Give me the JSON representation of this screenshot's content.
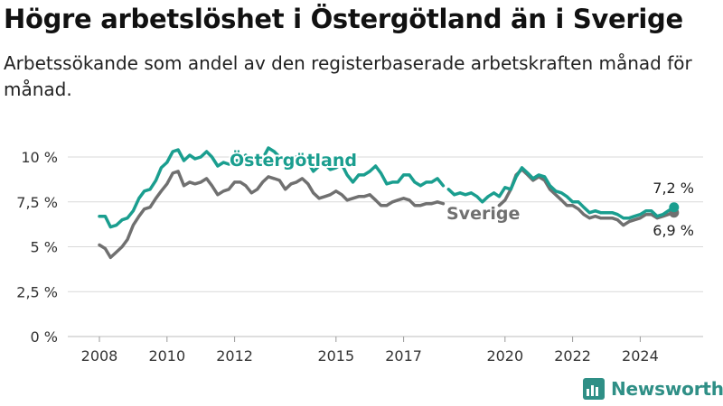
{
  "title": "Högre arbetslöshet i Östergötland än i Sverige",
  "subtitle": "Arbetssökande som andel av den registerbaserade arbetskraften månad för månad.",
  "brand": {
    "name": "Newsworthy",
    "icon": "newsworthy-logo-icon"
  },
  "colors": {
    "ostergotland": "#1a9e8f",
    "sverige": "#707070",
    "grid": "#d9d9d9"
  },
  "chart_data": {
    "type": "line",
    "title": "Högre arbetslöshet i Östergötland än i Sverige",
    "subtitle": "Arbetssökande som andel av den registerbaserade arbetskraften månad för månad.",
    "xlabel": "",
    "ylabel": "",
    "ylim": [
      0,
      10
    ],
    "xlim": [
      2007.6,
      2025.5
    ],
    "grid": true,
    "legend": "inline labels",
    "y_ticks": [
      {
        "value": 0,
        "label": "0 %"
      },
      {
        "value": 2.5,
        "label": "2,5 %"
      },
      {
        "value": 5,
        "label": "5 %"
      },
      {
        "value": 7.5,
        "label": "7,5 %"
      },
      {
        "value": 10,
        "label": "10 %"
      }
    ],
    "x_ticks": [
      {
        "value": 2008,
        "label": "2008"
      },
      {
        "value": 2010,
        "label": "2010"
      },
      {
        "value": 2012,
        "label": "2012"
      },
      {
        "value": 2015,
        "label": "2015"
      },
      {
        "value": 2017,
        "label": "2017"
      },
      {
        "value": 2020,
        "label": "2020"
      },
      {
        "value": 2022,
        "label": "2022"
      },
      {
        "value": 2024,
        "label": "2024"
      }
    ],
    "series": [
      {
        "name": "Östergötland",
        "color": "#1a9e8f",
        "end_label": "7,2 %",
        "segments": [
          [
            [
              2008.0,
              6.7
            ],
            [
              2008.17,
              6.7
            ],
            [
              2008.33,
              6.1
            ],
            [
              2008.5,
              6.2
            ],
            [
              2008.67,
              6.5
            ],
            [
              2008.83,
              6.6
            ],
            [
              2009.0,
              7.0
            ],
            [
              2009.17,
              7.7
            ],
            [
              2009.33,
              8.1
            ],
            [
              2009.5,
              8.2
            ],
            [
              2009.67,
              8.7
            ],
            [
              2009.83,
              9.4
            ],
            [
              2010.0,
              9.7
            ],
            [
              2010.17,
              10.3
            ],
            [
              2010.33,
              10.4
            ],
            [
              2010.5,
              9.8
            ],
            [
              2010.67,
              10.1
            ],
            [
              2010.83,
              9.9
            ],
            [
              2011.0,
              10.0
            ],
            [
              2011.17,
              10.3
            ],
            [
              2011.33,
              10.0
            ],
            [
              2011.5,
              9.5
            ],
            [
              2011.67,
              9.7
            ],
            [
              2011.83,
              9.6
            ],
            [
              2012.0,
              9.8
            ],
            [
              2012.17,
              9.8
            ],
            [
              2012.33,
              10.1
            ],
            [
              2012.5,
              9.8
            ],
            [
              2012.67,
              9.7
            ],
            [
              2012.83,
              9.9
            ],
            [
              2013.0,
              10.5
            ],
            [
              2013.17,
              10.3
            ],
            [
              2013.33,
              10.0
            ],
            [
              2013.5,
              9.8
            ],
            [
              2013.67,
              9.9
            ],
            [
              2013.83,
              10.0
            ],
            [
              2014.0,
              9.8
            ],
            [
              2014.17,
              9.7
            ],
            [
              2014.33,
              9.2
            ],
            [
              2014.5,
              9.5
            ],
            [
              2014.67,
              9.6
            ],
            [
              2014.83,
              9.3
            ],
            [
              2015.0,
              9.4
            ],
            [
              2015.17,
              9.6
            ],
            [
              2015.33,
              9.0
            ],
            [
              2015.5,
              8.6
            ],
            [
              2015.67,
              9.0
            ],
            [
              2015.83,
              9.0
            ],
            [
              2016.0,
              9.2
            ],
            [
              2016.17,
              9.5
            ],
            [
              2016.33,
              9.1
            ],
            [
              2016.5,
              8.5
            ],
            [
              2016.67,
              8.6
            ],
            [
              2016.83,
              8.6
            ],
            [
              2017.0,
              9.0
            ],
            [
              2017.17,
              9.0
            ],
            [
              2017.33,
              8.6
            ],
            [
              2017.5,
              8.4
            ],
            [
              2017.67,
              8.6
            ],
            [
              2017.83,
              8.6
            ],
            [
              2018.0,
              8.8
            ],
            [
              2018.17,
              8.4
            ]
          ],
          [
            [
              2018.33,
              8.2
            ],
            [
              2018.5,
              7.9
            ],
            [
              2018.67,
              8.0
            ],
            [
              2018.83,
              7.9
            ],
            [
              2019.0,
              8.0
            ],
            [
              2019.17,
              7.8
            ],
            [
              2019.33,
              7.5
            ],
            [
              2019.5,
              7.8
            ],
            [
              2019.67,
              8.0
            ],
            [
              2019.83,
              7.8
            ],
            [
              2020.0,
              8.3
            ],
            [
              2020.17,
              8.2
            ],
            [
              2020.33,
              8.9
            ],
            [
              2020.5,
              9.4
            ],
            [
              2020.67,
              9.1
            ],
            [
              2020.83,
              8.8
            ],
            [
              2021.0,
              9.0
            ],
            [
              2021.17,
              8.9
            ],
            [
              2021.33,
              8.4
            ],
            [
              2021.5,
              8.1
            ],
            [
              2021.67,
              8.0
            ],
            [
              2021.83,
              7.8
            ],
            [
              2022.0,
              7.5
            ],
            [
              2022.17,
              7.5
            ],
            [
              2022.33,
              7.2
            ],
            [
              2022.5,
              6.9
            ],
            [
              2022.67,
              7.0
            ],
            [
              2022.83,
              6.9
            ],
            [
              2023.0,
              6.9
            ],
            [
              2023.17,
              6.9
            ],
            [
              2023.33,
              6.8
            ],
            [
              2023.5,
              6.6
            ],
            [
              2023.67,
              6.6
            ],
            [
              2023.83,
              6.7
            ],
            [
              2024.0,
              6.8
            ],
            [
              2024.17,
              7.0
            ],
            [
              2024.33,
              7.0
            ],
            [
              2024.5,
              6.7
            ],
            [
              2024.67,
              6.8
            ],
            [
              2024.83,
              7.0
            ],
            [
              2025.0,
              7.2
            ]
          ]
        ]
      },
      {
        "name": "Sverige",
        "color": "#707070",
        "end_label": "6,9 %",
        "segments": [
          [
            [
              2008.0,
              5.1
            ],
            [
              2008.17,
              4.9
            ],
            [
              2008.33,
              4.4
            ],
            [
              2008.5,
              4.7
            ],
            [
              2008.67,
              5.0
            ],
            [
              2008.83,
              5.4
            ],
            [
              2009.0,
              6.2
            ],
            [
              2009.17,
              6.7
            ],
            [
              2009.33,
              7.1
            ],
            [
              2009.5,
              7.2
            ],
            [
              2009.67,
              7.7
            ],
            [
              2009.83,
              8.1
            ],
            [
              2010.0,
              8.5
            ],
            [
              2010.17,
              9.1
            ],
            [
              2010.33,
              9.2
            ],
            [
              2010.5,
              8.4
            ],
            [
              2010.67,
              8.6
            ],
            [
              2010.83,
              8.5
            ],
            [
              2011.0,
              8.6
            ],
            [
              2011.17,
              8.8
            ],
            [
              2011.33,
              8.4
            ],
            [
              2011.5,
              7.9
            ],
            [
              2011.67,
              8.1
            ],
            [
              2011.83,
              8.2
            ],
            [
              2012.0,
              8.6
            ],
            [
              2012.17,
              8.6
            ],
            [
              2012.33,
              8.4
            ],
            [
              2012.5,
              8.0
            ],
            [
              2012.67,
              8.2
            ],
            [
              2012.83,
              8.6
            ],
            [
              2013.0,
              8.9
            ],
            [
              2013.17,
              8.8
            ],
            [
              2013.33,
              8.7
            ],
            [
              2013.5,
              8.2
            ],
            [
              2013.67,
              8.5
            ],
            [
              2013.83,
              8.6
            ],
            [
              2014.0,
              8.8
            ],
            [
              2014.17,
              8.5
            ],
            [
              2014.33,
              8.0
            ],
            [
              2014.5,
              7.7
            ],
            [
              2014.67,
              7.8
            ],
            [
              2014.83,
              7.9
            ],
            [
              2015.0,
              8.1
            ],
            [
              2015.17,
              7.9
            ],
            [
              2015.33,
              7.6
            ],
            [
              2015.5,
              7.7
            ],
            [
              2015.67,
              7.8
            ],
            [
              2015.83,
              7.8
            ],
            [
              2016.0,
              7.9
            ],
            [
              2016.17,
              7.6
            ],
            [
              2016.33,
              7.3
            ],
            [
              2016.5,
              7.3
            ],
            [
              2016.67,
              7.5
            ],
            [
              2016.83,
              7.6
            ],
            [
              2017.0,
              7.7
            ],
            [
              2017.17,
              7.6
            ],
            [
              2017.33,
              7.3
            ],
            [
              2017.5,
              7.3
            ],
            [
              2017.67,
              7.4
            ],
            [
              2017.83,
              7.4
            ],
            [
              2018.0,
              7.5
            ],
            [
              2018.17,
              7.4
            ]
          ],
          [
            [
              2019.83,
              7.3
            ],
            [
              2020.0,
              7.6
            ],
            [
              2020.17,
              8.2
            ],
            [
              2020.33,
              9.0
            ],
            [
              2020.5,
              9.3
            ],
            [
              2020.67,
              9.0
            ],
            [
              2020.83,
              8.7
            ],
            [
              2021.0,
              8.9
            ],
            [
              2021.17,
              8.7
            ],
            [
              2021.33,
              8.2
            ],
            [
              2021.5,
              7.9
            ],
            [
              2021.67,
              7.6
            ],
            [
              2021.83,
              7.3
            ],
            [
              2022.0,
              7.3
            ],
            [
              2022.17,
              7.1
            ],
            [
              2022.33,
              6.8
            ],
            [
              2022.5,
              6.6
            ],
            [
              2022.67,
              6.7
            ],
            [
              2022.83,
              6.6
            ],
            [
              2023.0,
              6.6
            ],
            [
              2023.17,
              6.6
            ],
            [
              2023.33,
              6.5
            ],
            [
              2023.5,
              6.2
            ],
            [
              2023.67,
              6.4
            ],
            [
              2023.83,
              6.5
            ],
            [
              2024.0,
              6.6
            ],
            [
              2024.17,
              6.8
            ],
            [
              2024.33,
              6.8
            ],
            [
              2024.5,
              6.6
            ],
            [
              2024.67,
              6.7
            ],
            [
              2024.83,
              6.8
            ],
            [
              2025.0,
              6.9
            ]
          ]
        ]
      }
    ]
  }
}
